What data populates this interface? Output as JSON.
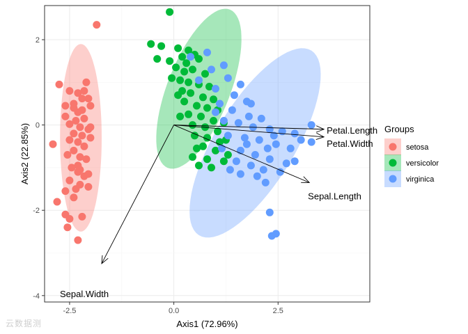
{
  "chart_data": {
    "type": "scatter",
    "title": "",
    "xlabel": "Axis1 (72.96%)",
    "ylabel": "Axis2 (22.85%)",
    "xlim": [
      -3.1,
      4.7
    ],
    "ylim": [
      -4.15,
      2.8
    ],
    "x_ticks": [
      -2.5,
      0.0,
      2.5
    ],
    "x_tick_labels": [
      "-2.5",
      "0.0",
      "2.5"
    ],
    "y_ticks": [
      -4,
      -2,
      0,
      2
    ],
    "y_tick_labels": [
      "-4",
      "-2",
      "0",
      "2"
    ],
    "grid": true,
    "legend": {
      "title": "Groups",
      "position": "right",
      "entries": [
        "setosa",
        "versicolor",
        "virginica"
      ]
    },
    "colors": {
      "setosa": "#F8766D",
      "versicolor": "#00BA38",
      "virginica": "#619CFF"
    },
    "ellipses": [
      {
        "group": "setosa",
        "center": [
          -2.23,
          -0.3
        ],
        "semi_axes": [
          0.5,
          2.2
        ],
        "angle_deg": 0
      },
      {
        "group": "versicolor",
        "center": [
          0.6,
          0.85
        ],
        "semi_axes": [
          0.75,
          2.0
        ],
        "angle_deg": 22
      },
      {
        "group": "virginica",
        "center": [
          1.95,
          -0.42
        ],
        "semi_axes": [
          0.95,
          2.55
        ],
        "angle_deg": 32
      }
    ],
    "loadings": [
      {
        "name": "Petal.Length",
        "label": "Petal.Length",
        "end": [
          3.6,
          -0.1
        ]
      },
      {
        "name": "Petal.Width",
        "label": "Petal.Width",
        "end": [
          3.6,
          -0.28
        ]
      },
      {
        "name": "Sepal.Length",
        "label": "Sepal.Length",
        "end": [
          3.25,
          -1.35
        ]
      },
      {
        "name": "Sepal.Width",
        "label": "Sepal.Width",
        "end": [
          -1.73,
          -3.25
        ]
      }
    ],
    "series": [
      {
        "name": "setosa",
        "points": [
          [
            -1.85,
            2.35
          ],
          [
            -2.75,
            0.95
          ],
          [
            -2.4,
            0.5
          ],
          [
            -2.1,
            1.0
          ],
          [
            -2.5,
            0.8
          ],
          [
            -2.3,
            0.75
          ],
          [
            -2.2,
            0.62
          ],
          [
            -2.05,
            0.62
          ],
          [
            -2.4,
            0.4
          ],
          [
            -2.2,
            0.35
          ],
          [
            -2.6,
            0.45
          ],
          [
            -2.0,
            0.45
          ],
          [
            -2.35,
            0.1
          ],
          [
            -2.15,
            0.15
          ],
          [
            -2.5,
            0.02
          ],
          [
            -2.25,
            -0.05
          ],
          [
            -2.05,
            -0.1
          ],
          [
            -2.4,
            -0.2
          ],
          [
            -2.2,
            -0.25
          ],
          [
            -2.5,
            -0.35
          ],
          [
            -2.0,
            -0.3
          ],
          [
            -2.3,
            -0.4
          ],
          [
            -2.9,
            -0.45
          ],
          [
            -2.15,
            -0.5
          ],
          [
            -2.4,
            -0.6
          ],
          [
            -2.55,
            -0.7
          ],
          [
            -2.25,
            -0.75
          ],
          [
            -2.1,
            -0.8
          ],
          [
            -2.3,
            -0.95
          ],
          [
            -2.45,
            -1.0
          ],
          [
            -2.25,
            -1.05
          ],
          [
            -2.3,
            -1.1
          ],
          [
            -2.15,
            -1.2
          ],
          [
            -2.05,
            -1.15
          ],
          [
            -2.5,
            -1.3
          ],
          [
            -2.25,
            -1.4
          ],
          [
            -2.05,
            -1.45
          ],
          [
            -2.35,
            -1.5
          ],
          [
            -2.6,
            -1.55
          ],
          [
            -2.4,
            -1.7
          ],
          [
            -2.8,
            -1.8
          ],
          [
            -2.6,
            -2.1
          ],
          [
            -2.2,
            -2.15
          ],
          [
            -2.5,
            -2.2
          ],
          [
            -2.55,
            -2.4
          ],
          [
            -2.3,
            -2.7
          ],
          [
            -2.0,
            -0.05
          ],
          [
            -2.6,
            0.2
          ],
          [
            -2.3,
            0.3
          ],
          [
            -2.15,
            0.8
          ]
        ]
      },
      {
        "name": "versicolor",
        "points": [
          [
            -0.1,
            2.65
          ],
          [
            -0.55,
            1.9
          ],
          [
            -0.4,
            1.55
          ],
          [
            -0.3,
            1.85
          ],
          [
            0.1,
            1.8
          ],
          [
            0.35,
            1.75
          ],
          [
            0.5,
            1.65
          ],
          [
            -0.1,
            1.5
          ],
          [
            0.2,
            1.6
          ],
          [
            0.6,
            1.55
          ],
          [
            0.3,
            1.45
          ],
          [
            0.05,
            1.35
          ],
          [
            0.25,
            1.25
          ],
          [
            0.45,
            1.3
          ],
          [
            0.75,
            1.2
          ],
          [
            -0.05,
            1.1
          ],
          [
            0.15,
            1.05
          ],
          [
            0.35,
            1.0
          ],
          [
            0.6,
            0.95
          ],
          [
            0.85,
            0.9
          ],
          [
            0.2,
            0.8
          ],
          [
            0.4,
            0.75
          ],
          [
            0.7,
            0.65
          ],
          [
            0.95,
            0.6
          ],
          [
            0.25,
            0.55
          ],
          [
            0.55,
            0.45
          ],
          [
            0.8,
            0.4
          ],
          [
            1.05,
            0.35
          ],
          [
            0.35,
            0.25
          ],
          [
            0.65,
            0.2
          ],
          [
            0.95,
            0.1
          ],
          [
            1.2,
            0.05
          ],
          [
            0.45,
            0.0
          ],
          [
            0.75,
            -0.05
          ],
          [
            1.05,
            -0.15
          ],
          [
            0.5,
            -0.25
          ],
          [
            0.8,
            -0.3
          ],
          [
            1.1,
            -0.4
          ],
          [
            0.7,
            -0.5
          ],
          [
            1.0,
            -0.6
          ],
          [
            0.45,
            -0.75
          ],
          [
            0.8,
            -0.8
          ],
          [
            1.2,
            -0.85
          ],
          [
            0.6,
            -0.95
          ],
          [
            0.9,
            -1.0
          ],
          [
            1.3,
            -0.7
          ],
          [
            1.25,
            -0.35
          ],
          [
            0.15,
            0.2
          ],
          [
            0.55,
            -0.55
          ],
          [
            0.1,
            0.7
          ]
        ]
      },
      {
        "name": "virginica",
        "points": [
          [
            0.4,
            1.6
          ],
          [
            0.8,
            1.7
          ],
          [
            1.2,
            1.4
          ],
          [
            0.9,
            1.3
          ],
          [
            1.3,
            1.1
          ],
          [
            1.6,
            0.95
          ],
          [
            0.6,
            1.05
          ],
          [
            1.0,
            0.85
          ],
          [
            1.45,
            0.7
          ],
          [
            1.75,
            0.55
          ],
          [
            1.1,
            0.5
          ],
          [
            1.4,
            0.35
          ],
          [
            1.8,
            0.2
          ],
          [
            2.1,
            0.15
          ],
          [
            1.2,
            0.1
          ],
          [
            1.55,
            0.05
          ],
          [
            1.9,
            -0.05
          ],
          [
            2.3,
            -0.1
          ],
          [
            2.6,
            -0.15
          ],
          [
            3.3,
            0.0
          ],
          [
            2.9,
            -0.2
          ],
          [
            1.3,
            -0.25
          ],
          [
            1.7,
            -0.3
          ],
          [
            2.05,
            -0.35
          ],
          [
            2.45,
            -0.45
          ],
          [
            2.8,
            -0.55
          ],
          [
            3.05,
            -0.35
          ],
          [
            1.6,
            -0.6
          ],
          [
            1.95,
            -0.7
          ],
          [
            2.3,
            -0.8
          ],
          [
            1.15,
            -0.55
          ],
          [
            1.5,
            -0.85
          ],
          [
            1.85,
            -0.95
          ],
          [
            2.15,
            -1.05
          ],
          [
            3.3,
            -0.4
          ],
          [
            2.7,
            -0.9
          ],
          [
            2.9,
            -0.85
          ],
          [
            1.6,
            -1.15
          ],
          [
            2.0,
            -1.2
          ],
          [
            1.35,
            -1.05
          ],
          [
            1.75,
            -0.45
          ],
          [
            2.25,
            -0.55
          ],
          [
            2.55,
            -1.1
          ],
          [
            2.2,
            -1.35
          ],
          [
            2.4,
            -0.25
          ],
          [
            2.3,
            -2.05
          ],
          [
            2.35,
            -2.6
          ],
          [
            2.45,
            -2.55
          ],
          [
            1.0,
            0.3
          ],
          [
            1.85,
            0.5
          ]
        ]
      }
    ]
  },
  "watermark": "云数据测"
}
